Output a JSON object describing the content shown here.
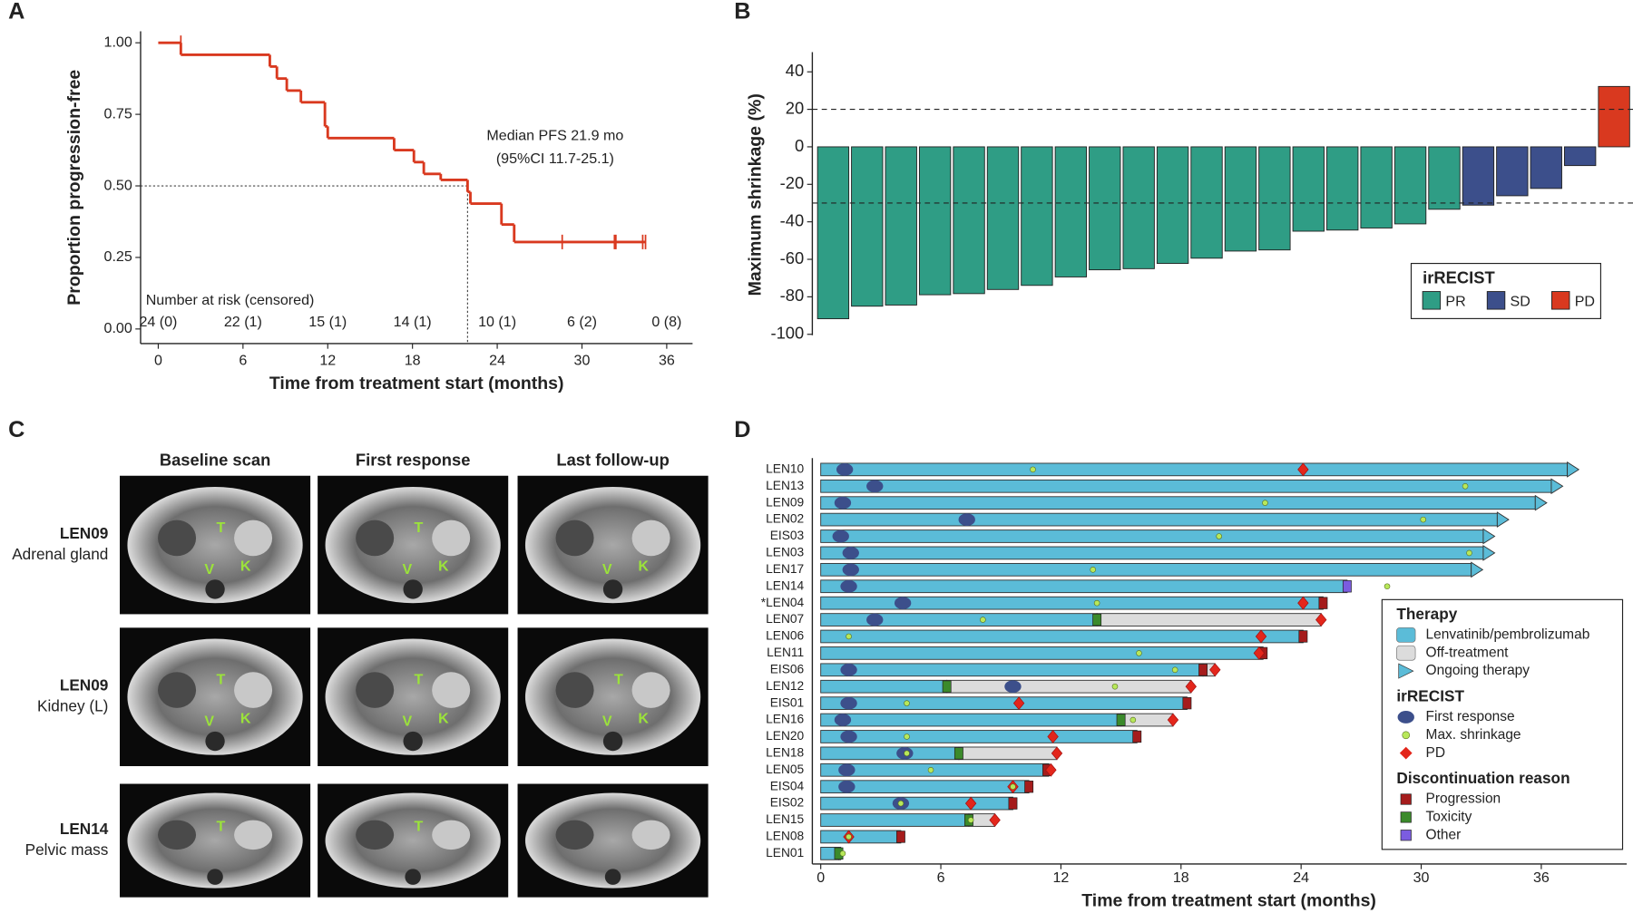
{
  "chart_data": [
    {
      "type": "line",
      "panel": "A",
      "step": true,
      "ylabel": "Proportion progression-free",
      "xlabel": "Time from treatment start (months)",
      "x": [
        0,
        1.6,
        7.9,
        8.4,
        9.1,
        10.1,
        11.8,
        12.0,
        16.7,
        18.1,
        18.8,
        20.0,
        21.9,
        22.1,
        24.3,
        25.2
      ],
      "values": [
        1.0,
        0.958,
        0.917,
        0.875,
        0.833,
        0.792,
        0.708,
        0.667,
        0.625,
        0.583,
        0.542,
        0.521,
        0.479,
        0.438,
        0.365,
        0.304
      ],
      "color": "#d9391f",
      "censored": {
        "x": [
          1.6,
          28.6,
          32.3,
          32.4,
          34.3,
          34.5
        ],
        "y": [
          1.0,
          0.304,
          0.304,
          0.304,
          0.304,
          0.304
        ]
      },
      "reference": {
        "x": 21.9,
        "y": 0.5
      },
      "annotations": [
        "Median PFS 21.9 mo",
        "(95%CI 11.7-25.1)"
      ],
      "risk_title": "Number at risk (censored)",
      "risk_table": [
        "24 (0)",
        "22 (1)",
        "15 (1)",
        "14 (1)",
        "10 (1)",
        "6 (2)",
        "0 (8)"
      ],
      "xlim": [
        -1.25,
        37.83
      ],
      "xticks": [
        0,
        6,
        12,
        18,
        24,
        30,
        36
      ],
      "ylim": [
        -0.051,
        1.04
      ],
      "yticks": [
        {
          "value": 0,
          "label": "0.00"
        },
        {
          "value": 0.25,
          "label": "0.25"
        },
        {
          "value": 0.5,
          "label": "0.50"
        },
        {
          "value": 0.75,
          "label": "0.75"
        },
        {
          "value": 1,
          "label": "1.00"
        }
      ]
    },
    {
      "type": "bar",
      "panel": "B",
      "ylabel": "Maximum shrinkage (%)",
      "ylim": [
        -100.5,
        50.5
      ],
      "yticks": [
        -100,
        -80,
        -60,
        -40,
        -20,
        0,
        20,
        40
      ],
      "reference_lines": [
        20,
        -30
      ],
      "legend_title": "irRECIST",
      "legend_position": "bottom-right",
      "series": [
        {
          "name": "PR",
          "color": "#2f9d85",
          "values": [
            -91.7,
            -85,
            -84.4,
            -78.9,
            -78.3,
            -76.1,
            -73.9,
            -69.4,
            -65.6,
            -65,
            -62.2,
            -59.4,
            -55.6,
            -55,
            -45,
            -44.4,
            -43.3,
            -41.1,
            -33.3
          ]
        },
        {
          "name": "SD",
          "color": "#3c4f8b",
          "values": [
            -31.1,
            -26.1,
            -22.2,
            -10
          ]
        },
        {
          "name": "PD",
          "color": "#d9391f",
          "values": [
            32.2
          ]
        }
      ]
    },
    {
      "type": "swimmer",
      "panel": "D",
      "xlabel": "Time from treatment start (months)",
      "xlim": [
        -0.42,
        40.27
      ],
      "xticks": [
        0,
        6,
        12,
        18,
        24,
        30,
        36
      ],
      "categories": [
        "LEN10",
        "LEN13",
        "LEN09",
        "LEN02",
        "EIS03",
        "LEN03",
        "LEN17",
        "LEN14",
        "*LEN04",
        "LEN07",
        "LEN06",
        "LEN11",
        "EIS06",
        "LEN12",
        "EIS01",
        "LEN16",
        "LEN20",
        "LEN18",
        "LEN05",
        "EIS04",
        "EIS02",
        "LEN15",
        "LEN08",
        "LEN01"
      ],
      "end": [
        37.3,
        36.5,
        35.7,
        33.8,
        33.1,
        33.1,
        32.5,
        26.3,
        25.1,
        25.0,
        24.1,
        22.1,
        19.7,
        18.5,
        18.3,
        17.6,
        15.8,
        11.8,
        11.4,
        10.4,
        9.6,
        8.7,
        4.0,
        1.0
      ],
      "treatment_end": [
        null,
        null,
        null,
        null,
        null,
        null,
        null,
        null,
        null,
        13.8,
        null,
        null,
        19.1,
        6.3,
        null,
        15.0,
        null,
        6.9,
        null,
        null,
        null,
        7.4,
        null,
        0.9
      ],
      "ongoing": [
        true,
        true,
        true,
        true,
        true,
        true,
        true,
        false,
        false,
        false,
        false,
        false,
        false,
        false,
        false,
        false,
        false,
        false,
        false,
        false,
        false,
        false,
        false,
        false
      ],
      "first_response": [
        1.2,
        2.7,
        1.1,
        7.3,
        1.0,
        1.5,
        1.5,
        1.4,
        4.1,
        2.7,
        null,
        null,
        1.4,
        9.6,
        1.4,
        1.1,
        1.4,
        4.2,
        1.3,
        1.3,
        4.0,
        null,
        null,
        null
      ],
      "max_shrinkage": [
        10.6,
        32.2,
        22.2,
        30.1,
        19.9,
        32.4,
        13.6,
        28.3,
        13.8,
        8.1,
        1.4,
        15.9,
        17.7,
        14.7,
        4.3,
        15.6,
        4.3,
        4.3,
        5.5,
        9.6,
        4.0,
        7.5,
        1.4,
        1.1
      ],
      "pd": [
        24.1,
        null,
        null,
        null,
        null,
        null,
        null,
        null,
        24.1,
        25.0,
        22.0,
        21.9,
        19.7,
        18.5,
        9.9,
        17.6,
        11.6,
        11.8,
        11.5,
        9.6,
        7.5,
        8.7,
        1.4,
        null
      ],
      "discontinuation_time": [
        null,
        null,
        null,
        null,
        null,
        null,
        null,
        26.3,
        25.1,
        13.8,
        24.1,
        22.1,
        19.1,
        6.3,
        18.3,
        15.0,
        15.8,
        6.9,
        11.3,
        10.4,
        9.6,
        7.4,
        4.0,
        0.9
      ],
      "discontinuation_reason": [
        null,
        null,
        null,
        null,
        null,
        null,
        null,
        2,
        0,
        1,
        0,
        0,
        0,
        1,
        0,
        1,
        0,
        1,
        0,
        0,
        0,
        1,
        0,
        1
      ],
      "legend_position": "right",
      "legend": [
        {
          "title": "Therapy",
          "entries": [
            {
              "label": "Lenvatinib/pembrolizumab",
              "color": "#5bbcd8",
              "shape": "bar"
            },
            {
              "label": "Off-treatment",
              "color": "#dcdcdc",
              "shape": "bar"
            },
            {
              "label": "Ongoing therapy",
              "color": "#5bbcd8",
              "shape": "arrow"
            }
          ]
        },
        {
          "title": "irRECIST",
          "entries": [
            {
              "label": "First response",
              "color": "#3c4f8b",
              "shape": "ellipse"
            },
            {
              "label": "Max. shrinkage",
              "color": "#b8e85a",
              "shape": "circle"
            },
            {
              "label": "PD",
              "color": "#e3261b",
              "shape": "diamond"
            }
          ]
        },
        {
          "title": "Discontinuation reason",
          "entries": [
            {
              "label": "Progression",
              "color": "#a51c1c",
              "shape": "square"
            },
            {
              "label": "Toxicity",
              "color": "#3b8a2b",
              "shape": "square"
            },
            {
              "label": "Other",
              "color": "#7b5ce0",
              "shape": "square"
            }
          ]
        }
      ]
    }
  ],
  "figure_c": {
    "panel": "C",
    "columns": [
      "Baseline scan",
      "First response",
      "Last follow-up"
    ],
    "rows": [
      {
        "title": "LEN09",
        "subtitle": "Adrenal gland",
        "labels": [
          [
            "T",
            "V",
            "K"
          ],
          [
            "T",
            "V",
            "K"
          ],
          [
            "V",
            "K"
          ]
        ]
      },
      {
        "title": "LEN09",
        "subtitle": "Kidney (L)",
        "labels": [
          [
            "T",
            "V",
            "K"
          ],
          [
            "T",
            "V",
            "K"
          ],
          [
            "T",
            "V",
            "K"
          ]
        ]
      },
      {
        "title": "LEN14",
        "subtitle": "Pelvic mass",
        "labels": [
          [
            "T"
          ],
          [
            "T"
          ],
          []
        ]
      }
    ]
  }
}
